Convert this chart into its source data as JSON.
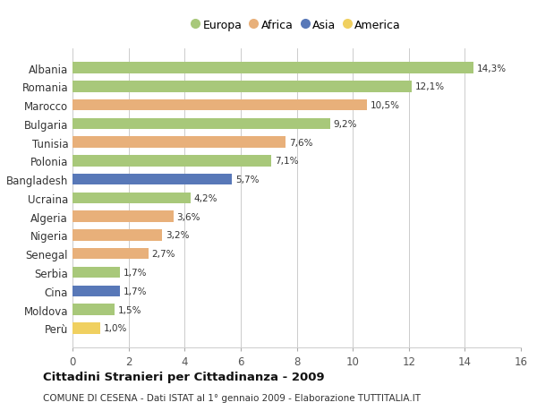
{
  "countries": [
    "Albania",
    "Romania",
    "Marocco",
    "Bulgaria",
    "Tunisia",
    "Polonia",
    "Bangladesh",
    "Ucraina",
    "Algeria",
    "Nigeria",
    "Senegal",
    "Serbia",
    "Cina",
    "Moldova",
    "Perù"
  ],
  "values": [
    14.3,
    12.1,
    10.5,
    9.2,
    7.6,
    7.1,
    5.7,
    4.2,
    3.6,
    3.2,
    2.7,
    1.7,
    1.7,
    1.5,
    1.0
  ],
  "labels": [
    "14,3%",
    "12,1%",
    "10,5%",
    "9,2%",
    "7,6%",
    "7,1%",
    "5,7%",
    "4,2%",
    "3,6%",
    "3,2%",
    "2,7%",
    "1,7%",
    "1,7%",
    "1,5%",
    "1,0%"
  ],
  "continents": [
    "Europa",
    "Europa",
    "Africa",
    "Europa",
    "Africa",
    "Europa",
    "Asia",
    "Europa",
    "Africa",
    "Africa",
    "Africa",
    "Europa",
    "Asia",
    "Europa",
    "America"
  ],
  "colors": {
    "Europa": "#a8c87a",
    "Africa": "#e8b07a",
    "Asia": "#5878b8",
    "America": "#f0d060"
  },
  "legend_order": [
    "Europa",
    "Africa",
    "Asia",
    "America"
  ],
  "xlim": [
    0,
    16
  ],
  "xticks": [
    0,
    2,
    4,
    6,
    8,
    10,
    12,
    14,
    16
  ],
  "title": "Cittadini Stranieri per Cittadinanza - 2009",
  "subtitle": "COMUNE DI CESENA - Dati ISTAT al 1° gennaio 2009 - Elaborazione TUTTITALIA.IT",
  "background_color": "#ffffff",
  "grid_color": "#cccccc",
  "bar_height": 0.6
}
